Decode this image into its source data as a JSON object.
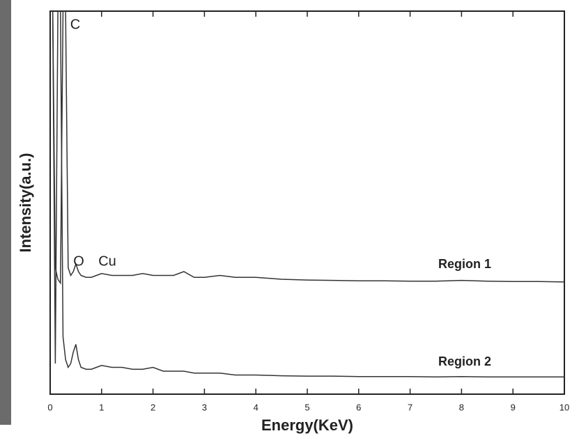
{
  "chart_data": {
    "type": "line",
    "x_label": "Energy(KeV)",
    "y_label": "Intensity(a.u.)",
    "annotations": [
      "C",
      "O",
      "Cu"
    ],
    "x": [
      0,
      0.05,
      0.1,
      0.15,
      0.2,
      0.25,
      0.3,
      0.35,
      0.4,
      0.45,
      0.5,
      0.55,
      0.6,
      0.7,
      0.8,
      0.9,
      1.0,
      1.2,
      1.4,
      1.6,
      1.8,
      2.0,
      2.2,
      2.4,
      2.6,
      2.8,
      3.0,
      3.3,
      3.6,
      4.0,
      4.5,
      5,
      5.5,
      6,
      6.5,
      7,
      7.5,
      8,
      8.5,
      9,
      9.5,
      10
    ],
    "series": [
      {
        "name": "Region 1",
        "color": "#333333",
        "values": [
          100,
          100,
          33,
          30,
          29,
          100,
          100,
          33,
          31,
          32,
          34,
          32,
          31,
          30.5,
          30.5,
          31,
          31.5,
          31,
          31,
          31,
          31.5,
          31,
          31,
          31,
          32,
          30.5,
          30.5,
          31,
          30.5,
          30.5,
          30,
          29.8,
          29.7,
          29.6,
          29.6,
          29.5,
          29.5,
          29.7,
          29.5,
          29.4,
          29.4,
          29.3
        ]
      },
      {
        "name": "Region 2",
        "color": "#333333",
        "values": [
          100,
          100,
          8,
          100,
          100,
          15,
          9,
          7,
          8,
          11,
          13,
          9,
          7,
          6.5,
          6.5,
          7,
          7.5,
          7,
          7,
          6.5,
          6.5,
          7,
          6,
          6,
          6,
          5.5,
          5.5,
          5.5,
          5,
          5,
          4.8,
          4.7,
          4.7,
          4.6,
          4.6,
          4.6,
          4.5,
          4.6,
          4.5,
          4.5,
          4.5,
          4.5
        ]
      }
    ],
    "xlim": [
      0,
      10
    ],
    "xticks": [
      0,
      1,
      2,
      3,
      4,
      5,
      6,
      7,
      8,
      9,
      10
    ],
    "ylim": [
      0,
      100
    ],
    "grid": false
  }
}
